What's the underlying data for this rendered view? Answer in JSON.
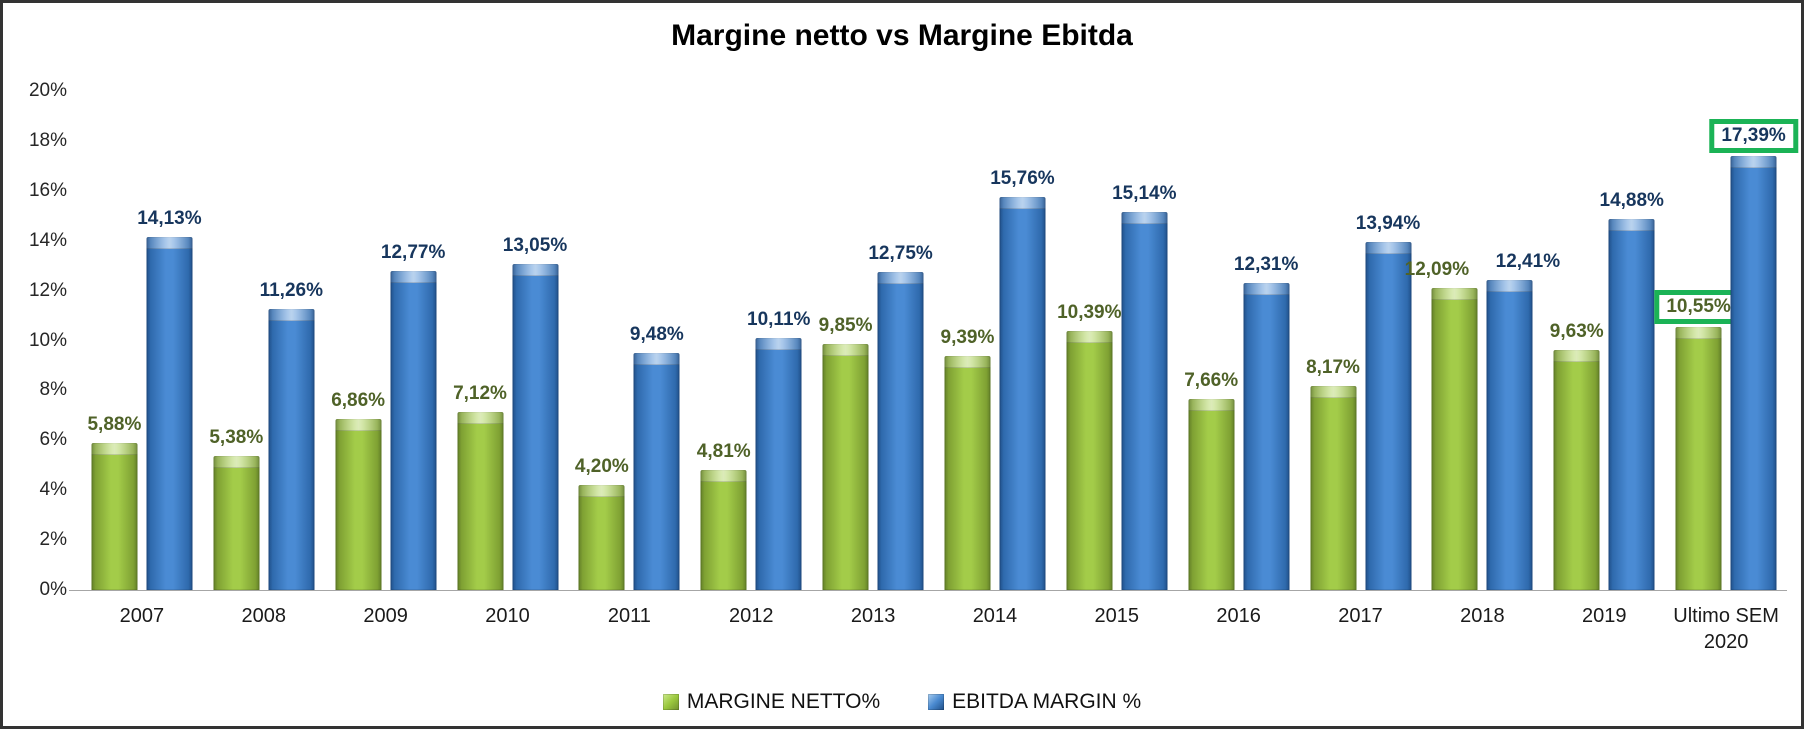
{
  "title": "Margine netto vs Margine Ebitda",
  "chart_data": {
    "type": "bar",
    "title": "Margine netto vs Margine Ebitda",
    "categories": [
      "2007",
      "2008",
      "2009",
      "2010",
      "2011",
      "2012",
      "2013",
      "2014",
      "2015",
      "2016",
      "2017",
      "2018",
      "2019",
      "Ultimo SEM 2020"
    ],
    "series": [
      {
        "name": "MARGINE NETTO%",
        "color": "#9bc83e",
        "label_color": "#4f6228",
        "values": [
          5.88,
          5.38,
          6.86,
          7.12,
          4.2,
          4.81,
          9.85,
          9.39,
          10.39,
          7.66,
          8.17,
          12.09,
          9.63,
          10.55
        ],
        "labels": [
          "5,88%",
          "5,38%",
          "6,86%",
          "7,12%",
          "4,20%",
          "4,81%",
          "9,85%",
          "9,39%",
          "10,39%",
          "7,66%",
          "8,17%",
          "12,09%",
          "9,63%",
          "10,55%"
        ]
      },
      {
        "name": "EBITDA MARGIN %",
        "color": "#4a8ad0",
        "label_color": "#17365d",
        "values": [
          14.13,
          11.26,
          12.77,
          13.05,
          9.48,
          10.11,
          12.75,
          15.76,
          15.14,
          12.31,
          13.94,
          12.41,
          14.88,
          17.39
        ],
        "labels": [
          "14,13%",
          "11,26%",
          "12,77%",
          "13,05%",
          "9,48%",
          "10,11%",
          "12,75%",
          "15,76%",
          "15,14%",
          "12,31%",
          "13,94%",
          "12,41%",
          "14,88%",
          "17,39%"
        ]
      }
    ],
    "ylim": [
      0,
      20
    ],
    "ytick_step": 2,
    "ytick_labels": [
      "0%",
      "2%",
      "4%",
      "6%",
      "8%",
      "10%",
      "12%",
      "14%",
      "16%",
      "18%",
      "20%"
    ],
    "grid": false,
    "legend_position": "bottom",
    "highlights": [
      {
        "series": 0,
        "index": 13,
        "label": "10,55%"
      },
      {
        "series": 1,
        "index": 13,
        "label": "17,39%"
      }
    ],
    "highlight_color": "#1bb356"
  }
}
